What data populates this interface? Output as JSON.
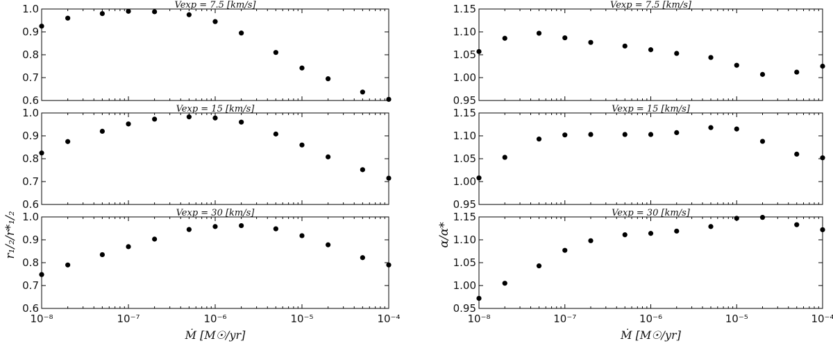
{
  "chart_data": [
    {
      "id": "left",
      "type": "scatter",
      "x": [
        1e-08,
        2e-08,
        5e-08,
        1e-07,
        2e-07,
        5e-07,
        1e-06,
        2e-06,
        5e-06,
        1e-05,
        2e-05,
        5e-05,
        0.0001
      ],
      "x_scale": "log",
      "xlim": [
        1e-08,
        0.0001
      ],
      "xticks": [
        1e-08,
        1e-07,
        1e-06,
        1e-05,
        0.0001
      ],
      "xlabel": "Ṁ [M☉/yr]",
      "ylabel": "r₁/₂/r*₁/₂",
      "ylim": [
        0.6,
        1.0
      ],
      "yticks": [
        "0.6",
        "0.7",
        "0.8",
        "0.9",
        "1.0"
      ],
      "panels": [
        {
          "title": "Vexp = 7.5 [km/s]",
          "values": [
            0.925,
            0.96,
            0.98,
            0.99,
            0.988,
            0.975,
            0.945,
            0.895,
            0.81,
            0.742,
            0.695,
            0.637,
            0.605
          ]
        },
        {
          "title": "Vexp = 15 [km/s]",
          "values": [
            0.825,
            0.875,
            0.92,
            0.952,
            0.973,
            0.983,
            0.978,
            0.96,
            0.908,
            0.86,
            0.808,
            0.752,
            0.715
          ]
        },
        {
          "title": "Vexp = 30 [km/s]",
          "values": [
            0.748,
            0.79,
            0.835,
            0.87,
            0.903,
            0.945,
            0.958,
            0.962,
            0.948,
            0.918,
            0.878,
            0.822,
            0.79
          ]
        }
      ]
    },
    {
      "id": "right",
      "type": "scatter",
      "x": [
        1e-08,
        2e-08,
        5e-08,
        1e-07,
        2e-07,
        5e-07,
        1e-06,
        2e-06,
        5e-06,
        1e-05,
        2e-05,
        5e-05,
        0.0001
      ],
      "x_scale": "log",
      "xlim": [
        1e-08,
        0.0001
      ],
      "xticks": [
        1e-08,
        1e-07,
        1e-06,
        1e-05,
        0.0001
      ],
      "xlabel": "Ṁ [M☉/yr]",
      "ylabel": "α/α*",
      "ylim": [
        0.95,
        1.15
      ],
      "yticks": [
        "0.95",
        "1.00",
        "1.05",
        "1.10",
        "1.15"
      ],
      "panels": [
        {
          "title": "Vexp = 7.5 [km/s]",
          "values": [
            1.057,
            1.086,
            1.097,
            1.087,
            1.077,
            1.069,
            1.061,
            1.053,
            1.044,
            1.027,
            1.007,
            1.012,
            1.025
          ]
        },
        {
          "title": "Vexp = 15 [km/s]",
          "values": [
            1.008,
            1.053,
            1.093,
            1.102,
            1.103,
            1.103,
            1.103,
            1.107,
            1.118,
            1.115,
            1.088,
            1.06,
            1.052
          ]
        },
        {
          "title": "Vexp = 30 [km/s]",
          "values": [
            0.972,
            1.005,
            1.043,
            1.077,
            1.098,
            1.111,
            1.114,
            1.119,
            1.129,
            1.147,
            1.149,
            1.133,
            1.122
          ]
        }
      ]
    }
  ]
}
